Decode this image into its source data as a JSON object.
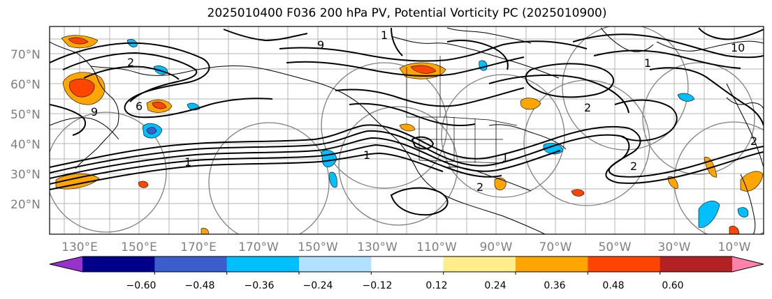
{
  "title": "2025010400 F036 200 hPa PV, Potential Vorticity PC (2025010900)",
  "latitude_labels": [
    "70°N",
    "60°N",
    "50°N",
    "40°N",
    "30°N",
    "20°N"
  ],
  "longitude_labels": [
    "130°E",
    "150°E",
    "170°E",
    "170°W",
    "150°W",
    "130°W",
    "110°W",
    "90°W",
    "70°W",
    "50°W",
    "30°W",
    "10°W"
  ],
  "colorbar": {
    "tick_labels": [
      "−0.60",
      "−0.48",
      "−0.36",
      "−0.24",
      "−0.12",
      "0.12",
      "0.24",
      "0.36",
      "0.48",
      "0.60"
    ],
    "colors": [
      "#9932cc",
      "#00008b",
      "#3a5fcd",
      "#00bfff",
      "#b0e2ff",
      "#ffffff",
      "#ffec8b",
      "#ffa500",
      "#ff4500",
      "#b22222",
      "#ff82ab"
    ]
  },
  "contour_labels": [
    "2",
    "1",
    "9",
    "6",
    "1",
    "1",
    "1",
    "2",
    "2",
    "1",
    "10",
    "9",
    "2",
    "2"
  ],
  "colors": {
    "contour": "#000000",
    "coastline": "#000000",
    "grid": "#b4b4b4",
    "circles": "#808080"
  }
}
